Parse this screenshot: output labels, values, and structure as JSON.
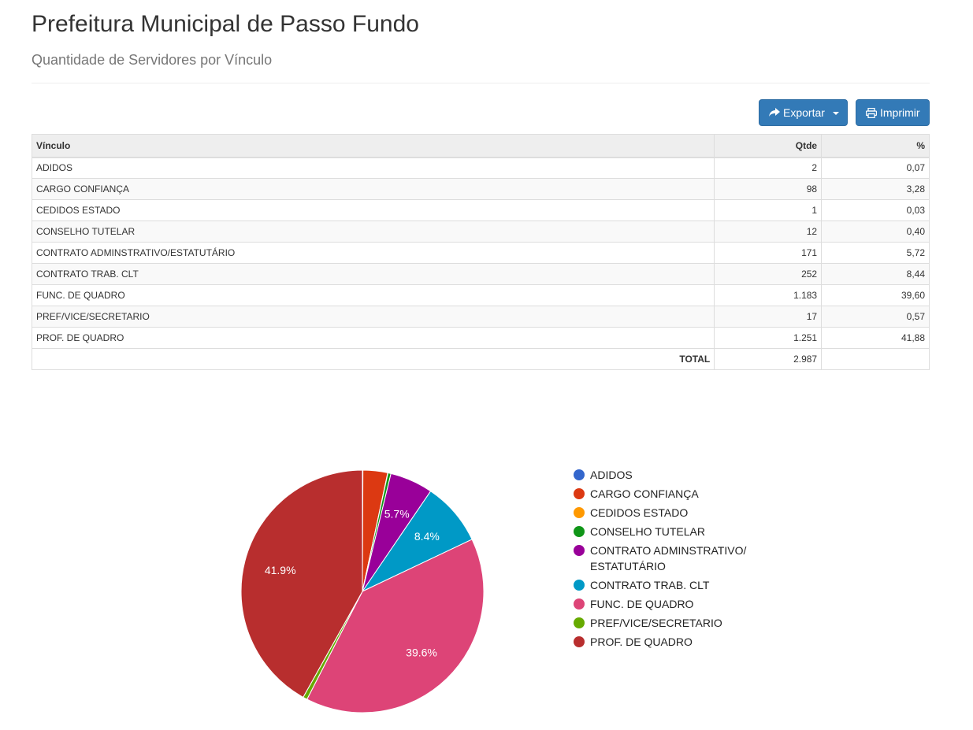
{
  "header": {
    "title": "Prefeitura Municipal de Passo Fundo",
    "subtitle": "Quantidade de Servidores por Vínculo"
  },
  "toolbar": {
    "export_label": "Exportar",
    "print_label": "Imprimir"
  },
  "table": {
    "columns": [
      "Vínculo",
      "Qtde",
      "%"
    ],
    "rows": [
      {
        "vinculo": "ADIDOS",
        "qtde": "2",
        "pct": "0,07"
      },
      {
        "vinculo": "CARGO CONFIANÇA",
        "qtde": "98",
        "pct": "3,28"
      },
      {
        "vinculo": "CEDIDOS ESTADO",
        "qtde": "1",
        "pct": "0,03"
      },
      {
        "vinculo": "CONSELHO TUTELAR",
        "qtde": "12",
        "pct": "0,40"
      },
      {
        "vinculo": "CONTRATO ADMINSTRATIVO/ESTATUTÁRIO",
        "qtde": "171",
        "pct": "5,72"
      },
      {
        "vinculo": "CONTRATO TRAB. CLT",
        "qtde": "252",
        "pct": "8,44"
      },
      {
        "vinculo": "FUNC. DE QUADRO",
        "qtde": "1.183",
        "pct": "39,60"
      },
      {
        "vinculo": "PREF/VICE/SECRETARIO",
        "qtde": "17",
        "pct": "0,57"
      },
      {
        "vinculo": "PROF. DE QUADRO",
        "qtde": "1.251",
        "pct": "41,88"
      }
    ],
    "total_label": "TOTAL",
    "total_value": "2.987"
  },
  "chart_data": {
    "type": "pie",
    "categories": [
      "ADIDOS",
      "CARGO CONFIANÇA",
      "CEDIDOS ESTADO",
      "CONSELHO TUTELAR",
      "CONTRATO ADMINSTRATIVO/\nESTATUTÁRIO",
      "CONTRATO TRAB. CLT",
      "FUNC. DE QUADRO",
      "PREF/VICE/SECRETARIO",
      "PROF. DE QUADRO"
    ],
    "values": [
      2,
      98,
      1,
      12,
      171,
      252,
      1183,
      17,
      1251
    ],
    "colors": [
      "#3366cc",
      "#dc3912",
      "#ff9900",
      "#109618",
      "#990099",
      "#0099c6",
      "#dd4477",
      "#66aa00",
      "#b82e2e"
    ],
    "slice_labels": [
      "",
      "",
      "",
      "",
      "5.7%",
      "8.4%",
      "39.6%",
      "",
      "41.9%"
    ],
    "legend_position": "right"
  }
}
